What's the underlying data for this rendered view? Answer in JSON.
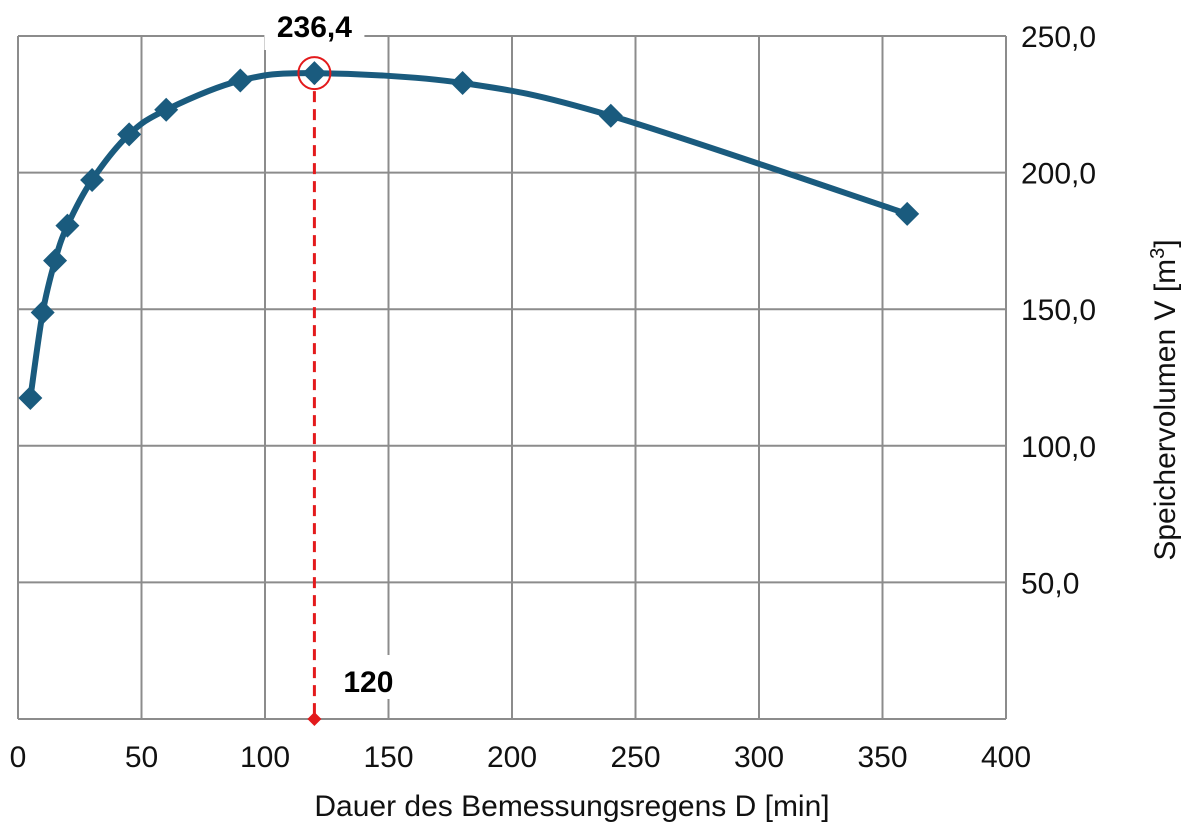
{
  "chart_data": {
    "type": "line",
    "title": "",
    "xlabel": "Dauer des Bemessungsregens  D [min]",
    "ylabel": {
      "main": "Speichervolumen V [m",
      "superscript": "3",
      "close": "]"
    },
    "xlim": [
      0,
      400
    ],
    "ylim": [
      0,
      250
    ],
    "x_ticks": [
      "0",
      "50",
      "100",
      "150",
      "200",
      "250",
      "300",
      "350",
      "400"
    ],
    "y_ticks": [
      "50,0",
      "100,0",
      "150,0",
      "200,0",
      "250,0"
    ],
    "y_tick_values": [
      50,
      100,
      150,
      200,
      250
    ],
    "x_tick_values": [
      0,
      50,
      100,
      150,
      200,
      250,
      300,
      350,
      400
    ],
    "y_axis_side": "right",
    "grid": true,
    "series": [
      {
        "x": [
          5,
          10,
          15,
          20,
          30,
          45,
          60,
          90,
          120,
          180,
          240,
          360
        ],
        "y": [
          117.5,
          148.8,
          167.8,
          180.6,
          197.3,
          214.0,
          223.0,
          233.7,
          236.4,
          232.8,
          220.8,
          184.9
        ],
        "color": "#1a5b7e",
        "marker": "diamond"
      }
    ],
    "annotations": {
      "max_value_label": "236,4",
      "max_x_label": "120",
      "max_point": {
        "x": 120,
        "y": 236.4
      },
      "highlight_color": "#e31a1c"
    }
  }
}
